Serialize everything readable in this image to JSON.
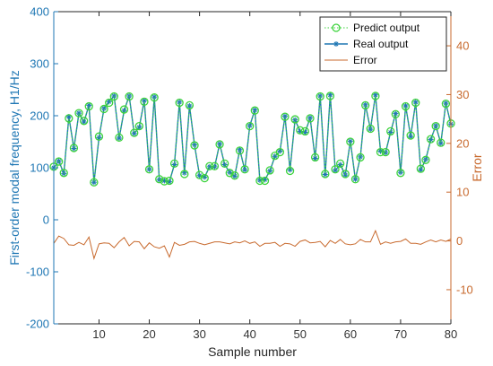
{
  "chart_data": {
    "type": "line",
    "xlabel": "Sample number",
    "ylabel_left": "First-order modal frequency, H1/Hz",
    "ylabel_right": "Error",
    "xlim": [
      1,
      80
    ],
    "ylim_left": [
      -200,
      400
    ],
    "ylim_right": [
      -17,
      47
    ],
    "x_ticks": [
      10,
      20,
      30,
      40,
      50,
      60,
      70,
      80
    ],
    "y_ticks_left": [
      -200,
      -100,
      0,
      100,
      200,
      300,
      400
    ],
    "y_ticks_right": [
      -10,
      0,
      10,
      20,
      30,
      40
    ],
    "grid": false,
    "legend_position": "top-right",
    "colors": {
      "left_axis": "#1f77b4",
      "right_axis": "#c86a2e",
      "predict": "#3cd33c",
      "real": "#1f77b4",
      "error": "#c86a2e"
    },
    "x": [
      1,
      2,
      3,
      4,
      5,
      6,
      7,
      8,
      9,
      10,
      11,
      12,
      13,
      14,
      15,
      16,
      17,
      18,
      19,
      20,
      21,
      22,
      23,
      24,
      25,
      26,
      27,
      28,
      29,
      30,
      31,
      32,
      33,
      34,
      35,
      36,
      37,
      38,
      39,
      40,
      41,
      42,
      43,
      44,
      45,
      46,
      47,
      48,
      49,
      50,
      51,
      52,
      53,
      54,
      55,
      56,
      57,
      58,
      59,
      60,
      61,
      62,
      63,
      64,
      65,
      66,
      67,
      68,
      69,
      70,
      71,
      72,
      73,
      74,
      75,
      76,
      77,
      78,
      79,
      80
    ],
    "series": [
      {
        "name": "Predict output",
        "axis": "left",
        "values": [
          102,
          112,
          90,
          195,
          138,
          205,
          190,
          218,
          72,
          160,
          213,
          225,
          237,
          158,
          212,
          237,
          167,
          180,
          227,
          97,
          235,
          78,
          74,
          75,
          108,
          225,
          88,
          220,
          143,
          86,
          80,
          103,
          103,
          145,
          108,
          90,
          85,
          133,
          97,
          180,
          210,
          75,
          75,
          95,
          123,
          130,
          198,
          94,
          193,
          172,
          170,
          195,
          120,
          237,
          88,
          238,
          97,
          108,
          88,
          150,
          78,
          120,
          220,
          175,
          238,
          130,
          130,
          170,
          203,
          90,
          218,
          162,
          225,
          98,
          115,
          155,
          180,
          148,
          223,
          185
        ]
      },
      {
        "name": "Real output",
        "axis": "left",
        "values": [
          100,
          113,
          89,
          198,
          137,
          205,
          188,
          220,
          72,
          158,
          214,
          227,
          238,
          157,
          210,
          238,
          166,
          178,
          229,
          97,
          236,
          77,
          75,
          73,
          106,
          226,
          90,
          219,
          144,
          85,
          82,
          102,
          102,
          146,
          106,
          91,
          84,
          135,
          96,
          181,
          211,
          76,
          77,
          94,
          122,
          132,
          199,
          96,
          192,
          170,
          168,
          196,
          118,
          238,
          87,
          240,
          95,
          106,
          86,
          151,
          78,
          121,
          221,
          174,
          240,
          132,
          129,
          168,
          204,
          91,
          219,
          160,
          226,
          96,
          116,
          154,
          181,
          147,
          224,
          184
        ]
      },
      {
        "name": "Error",
        "axis": "right",
        "values": [
          -0.5,
          1.0,
          0.5,
          -0.8,
          -0.9,
          -0.3,
          -0.8,
          0.8,
          -3.6,
          -0.6,
          -0.4,
          -0.5,
          -1.4,
          -0.2,
          0.7,
          -1.0,
          -0.1,
          -0.2,
          -1.6,
          -0.4,
          -1.2,
          -1.5,
          -1.0,
          -3.3,
          -0.3,
          -0.9,
          -0.7,
          -0.2,
          -0.1,
          -0.5,
          -0.8,
          -0.5,
          -0.2,
          -0.2,
          -0.4,
          -0.6,
          -0.2,
          -0.4,
          0.0,
          -0.5,
          -0.2,
          -1.1,
          -0.5,
          -0.5,
          -0.3,
          -1.1,
          -0.5,
          -0.6,
          -1.1,
          -0.1,
          0.2,
          -0.4,
          -0.3,
          -0.1,
          -1.2,
          0.1,
          -0.5,
          0.3,
          -0.6,
          -0.8,
          -0.6,
          0.3,
          -0.2,
          -0.2,
          2.1,
          -0.7,
          -0.2,
          -0.5,
          -0.2,
          -0.1,
          0.4,
          -0.5,
          -0.5,
          -0.7,
          -0.2,
          0.2,
          -0.2,
          0.2,
          -0.1,
          0.4
        ]
      }
    ]
  }
}
